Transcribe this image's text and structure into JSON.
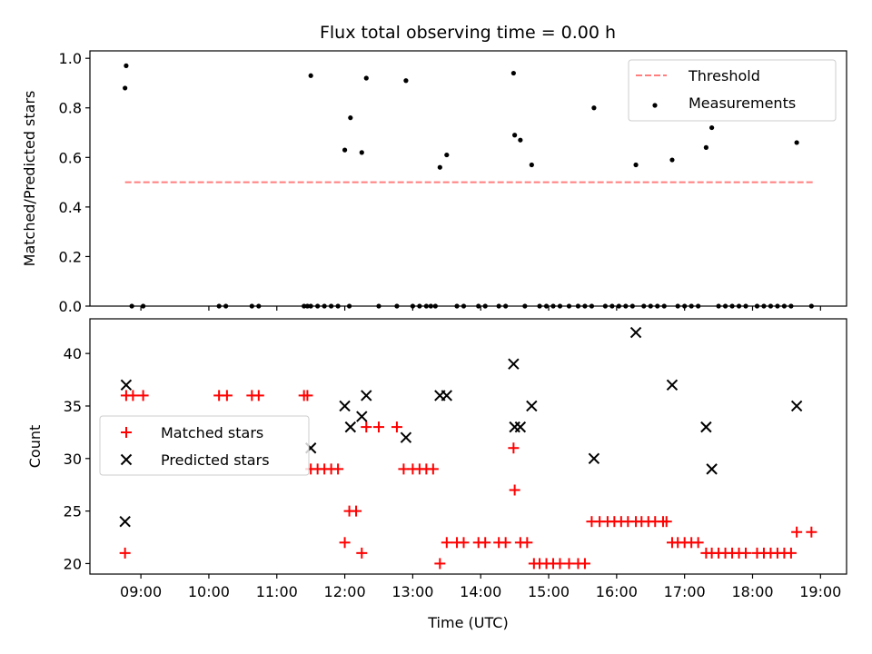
{
  "chart_data": [
    {
      "type": "scatter",
      "title": "Flux total observing time = 0.00 h",
      "xlabel": "",
      "ylabel": "Matched/Predicted stars",
      "xlim": [
        "08:15",
        "19:23"
      ],
      "ylim": [
        0,
        1.03
      ],
      "y_ticks": [
        0.0,
        0.2,
        0.4,
        0.6,
        0.8,
        1.0
      ],
      "y_tick_labels": [
        "0.0",
        "0.2",
        "0.4",
        "0.6",
        "0.8",
        "1.0"
      ],
      "legend": {
        "position": "upper right",
        "entries": [
          {
            "label": "Threshold",
            "style": "dashed-line",
            "color": "#ff7f7f"
          },
          {
            "label": "Measurements",
            "style": "dot",
            "color": "#000000"
          }
        ]
      },
      "threshold": {
        "name": "Threshold",
        "y": 0.5,
        "x_start": "08:46",
        "x_end": "18:55",
        "color": "#ff7f7f"
      },
      "series": [
        {
          "name": "Measurements",
          "color": "#000000",
          "points": [
            [
              "08:46",
              0.88
            ],
            [
              "08:47",
              0.97
            ],
            [
              "08:52",
              0.0
            ],
            [
              "09:02",
              0.0
            ],
            [
              "10:09",
              0.0
            ],
            [
              "10:15",
              0.0
            ],
            [
              "10:38",
              0.0
            ],
            [
              "10:44",
              0.0
            ],
            [
              "11:24",
              0.0
            ],
            [
              "11:27",
              0.0
            ],
            [
              "11:30",
              0.0
            ],
            [
              "11:30",
              0.93
            ],
            [
              "11:36",
              0.0
            ],
            [
              "11:42",
              0.0
            ],
            [
              "11:48",
              0.0
            ],
            [
              "11:54",
              0.0
            ],
            [
              "12:00",
              0.63
            ],
            [
              "12:04",
              0.0
            ],
            [
              "12:05",
              0.76
            ],
            [
              "12:15",
              0.62
            ],
            [
              "12:19",
              0.92
            ],
            [
              "12:30",
              0.0
            ],
            [
              "12:46",
              0.0
            ],
            [
              "12:54",
              0.91
            ],
            [
              "13:00",
              0.0
            ],
            [
              "13:06",
              0.0
            ],
            [
              "13:12",
              0.0
            ],
            [
              "13:16",
              0.0
            ],
            [
              "13:20",
              0.0
            ],
            [
              "13:24",
              0.56
            ],
            [
              "13:30",
              0.61
            ],
            [
              "13:39",
              0.0
            ],
            [
              "13:45",
              0.0
            ],
            [
              "13:58",
              0.0
            ],
            [
              "14:04",
              0.0
            ],
            [
              "14:16",
              0.0
            ],
            [
              "14:22",
              0.0
            ],
            [
              "14:29",
              0.94
            ],
            [
              "14:30",
              0.69
            ],
            [
              "14:35",
              0.67
            ],
            [
              "14:39",
              0.0
            ],
            [
              "14:45",
              0.57
            ],
            [
              "14:52",
              0.0
            ],
            [
              "14:58",
              0.0
            ],
            [
              "15:04",
              0.0
            ],
            [
              "15:10",
              0.0
            ],
            [
              "15:18",
              0.0
            ],
            [
              "15:26",
              0.0
            ],
            [
              "15:32",
              0.0
            ],
            [
              "15:38",
              0.0
            ],
            [
              "15:40",
              0.8
            ],
            [
              "15:50",
              0.0
            ],
            [
              "15:56",
              0.0
            ],
            [
              "16:02",
              0.0
            ],
            [
              "16:08",
              0.0
            ],
            [
              "16:14",
              0.0
            ],
            [
              "16:17",
              0.57
            ],
            [
              "16:24",
              0.0
            ],
            [
              "16:30",
              0.0
            ],
            [
              "16:36",
              0.0
            ],
            [
              "16:42",
              0.0
            ],
            [
              "16:49",
              0.59
            ],
            [
              "16:54",
              0.0
            ],
            [
              "17:00",
              0.0
            ],
            [
              "17:06",
              0.0
            ],
            [
              "17:12",
              0.0
            ],
            [
              "17:19",
              0.64
            ],
            [
              "17:24",
              0.72
            ],
            [
              "17:30",
              0.0
            ],
            [
              "17:36",
              0.0
            ],
            [
              "17:42",
              0.0
            ],
            [
              "17:48",
              0.0
            ],
            [
              "17:54",
              0.0
            ],
            [
              "18:04",
              0.0
            ],
            [
              "18:10",
              0.0
            ],
            [
              "18:16",
              0.0
            ],
            [
              "18:22",
              0.0
            ],
            [
              "18:28",
              0.0
            ],
            [
              "18:34",
              0.0
            ],
            [
              "18:39",
              0.66
            ],
            [
              "18:52",
              0.0
            ]
          ]
        }
      ]
    },
    {
      "type": "scatter",
      "title": "",
      "xlabel": "Time (UTC)",
      "ylabel": "Count",
      "xlim": [
        "08:15",
        "19:23"
      ],
      "ylim": [
        19.0,
        43.3
      ],
      "x_ticks": [
        "09:00",
        "10:00",
        "11:00",
        "12:00",
        "13:00",
        "14:00",
        "15:00",
        "16:00",
        "17:00",
        "18:00",
        "19:00"
      ],
      "y_ticks": [
        20,
        25,
        30,
        35,
        40
      ],
      "y_tick_labels": [
        "20",
        "25",
        "30",
        "35",
        "40"
      ],
      "legend": {
        "position": "center left",
        "entries": [
          {
            "label": "Matched stars",
            "style": "plus",
            "color": "#ff0000"
          },
          {
            "label": "Predicted stars",
            "style": "x",
            "color": "#000000"
          }
        ]
      },
      "series": [
        {
          "name": "Matched stars",
          "color": "#ff0000",
          "points": [
            [
              "08:46",
              21
            ],
            [
              "08:47",
              36
            ],
            [
              "08:53",
              36
            ],
            [
              "09:02",
              36
            ],
            [
              "10:09",
              36
            ],
            [
              "10:16",
              36
            ],
            [
              "10:38",
              36
            ],
            [
              "10:44",
              36
            ],
            [
              "11:24",
              36
            ],
            [
              "11:27",
              36
            ],
            [
              "11:30",
              29
            ],
            [
              "11:36",
              29
            ],
            [
              "11:42",
              29
            ],
            [
              "11:48",
              29
            ],
            [
              "11:54",
              29
            ],
            [
              "12:00",
              22
            ],
            [
              "12:04",
              25
            ],
            [
              "12:10",
              25
            ],
            [
              "12:15",
              21
            ],
            [
              "12:19",
              33
            ],
            [
              "12:30",
              33
            ],
            [
              "12:46",
              33
            ],
            [
              "12:52",
              29
            ],
            [
              "13:00",
              29
            ],
            [
              "13:06",
              29
            ],
            [
              "13:12",
              29
            ],
            [
              "13:18",
              29
            ],
            [
              "13:24",
              20
            ],
            [
              "13:30",
              22
            ],
            [
              "13:39",
              22
            ],
            [
              "13:45",
              22
            ],
            [
              "13:58",
              22
            ],
            [
              "14:04",
              22
            ],
            [
              "14:16",
              22
            ],
            [
              "14:22",
              22
            ],
            [
              "14:29",
              31
            ],
            [
              "14:30",
              27
            ],
            [
              "14:35",
              22
            ],
            [
              "14:41",
              22
            ],
            [
              "14:47",
              20
            ],
            [
              "14:52",
              20
            ],
            [
              "14:58",
              20
            ],
            [
              "15:04",
              20
            ],
            [
              "15:10",
              20
            ],
            [
              "15:18",
              20
            ],
            [
              "15:26",
              20
            ],
            [
              "15:32",
              20
            ],
            [
              "15:38",
              24
            ],
            [
              "15:45",
              24
            ],
            [
              "15:52",
              24
            ],
            [
              "15:58",
              24
            ],
            [
              "16:04",
              24
            ],
            [
              "16:10",
              24
            ],
            [
              "16:17",
              24
            ],
            [
              "16:22",
              24
            ],
            [
              "16:28",
              24
            ],
            [
              "16:34",
              24
            ],
            [
              "16:41",
              24
            ],
            [
              "16:44",
              24
            ],
            [
              "16:49",
              22
            ],
            [
              "16:54",
              22
            ],
            [
              "17:00",
              22
            ],
            [
              "17:06",
              22
            ],
            [
              "17:12",
              22
            ],
            [
              "17:19",
              21
            ],
            [
              "17:24",
              21
            ],
            [
              "17:30",
              21
            ],
            [
              "17:36",
              21
            ],
            [
              "17:42",
              21
            ],
            [
              "17:48",
              21
            ],
            [
              "17:54",
              21
            ],
            [
              "18:04",
              21
            ],
            [
              "18:10",
              21
            ],
            [
              "18:16",
              21
            ],
            [
              "18:22",
              21
            ],
            [
              "18:28",
              21
            ],
            [
              "18:34",
              21
            ],
            [
              "18:39",
              23
            ],
            [
              "18:52",
              23
            ]
          ]
        },
        {
          "name": "Predicted stars",
          "color": "#000000",
          "points": [
            [
              "08:46",
              24
            ],
            [
              "08:47",
              37
            ],
            [
              "11:30",
              31
            ],
            [
              "12:00",
              35
            ],
            [
              "12:05",
              33
            ],
            [
              "12:15",
              34
            ],
            [
              "12:19",
              36
            ],
            [
              "12:54",
              32
            ],
            [
              "13:24",
              36
            ],
            [
              "13:30",
              36
            ],
            [
              "14:29",
              39
            ],
            [
              "14:30",
              33
            ],
            [
              "14:35",
              33
            ],
            [
              "14:45",
              35
            ],
            [
              "15:40",
              30
            ],
            [
              "16:17",
              42
            ],
            [
              "16:49",
              37
            ],
            [
              "17:19",
              33
            ],
            [
              "17:24",
              29
            ],
            [
              "18:39",
              35
            ]
          ]
        }
      ]
    }
  ]
}
